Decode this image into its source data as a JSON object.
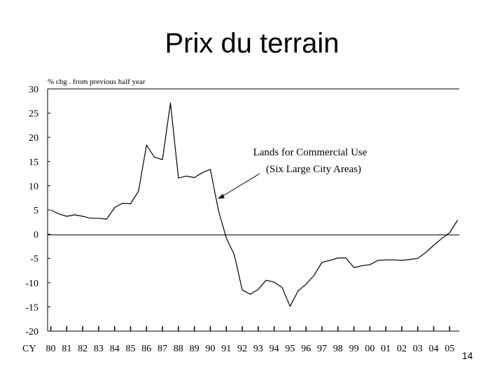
{
  "slide": {
    "title": "Prix du terrain",
    "page_number": "14"
  },
  "chart_data": {
    "type": "line",
    "title": "Prix du terrain",
    "ylabel": "% chg . from previous half year",
    "xlabel": "",
    "x_axis_prefix": "CY",
    "ylim": [
      -20,
      30
    ],
    "yticks": [
      30,
      25,
      20,
      15,
      10,
      5,
      0,
      -5,
      -10,
      -15,
      -20
    ],
    "ytick_labels": [
      "30",
      "25",
      "20",
      "15",
      "10",
      "5",
      "0",
      "-5",
      "-10",
      "-15",
      "-20"
    ],
    "categories": [
      "80",
      "81",
      "82",
      "83",
      "84",
      "85",
      "86",
      "87",
      "88",
      "89",
      "90",
      "91",
      "92",
      "93",
      "94",
      "95",
      "96",
      "97",
      "98",
      "99",
      "00",
      "01",
      "02",
      "03",
      "04",
      "05"
    ],
    "grid": false,
    "annotation": {
      "lines": [
        "Lands for Commercial Use",
        "(Six Large City Areas)"
      ]
    },
    "series": [
      {
        "name": "",
        "color": "#000000",
        "x": [
          1980.0,
          1980.5,
          1981.0,
          1981.5,
          1982.0,
          1982.5,
          1983.0,
          1983.5,
          1984.0,
          1984.5,
          1985.0,
          1985.5,
          1986.0,
          1986.5,
          1987.0,
          1987.5,
          1988.0,
          1988.5,
          1989.0,
          1989.5,
          1990.0,
          1990.5,
          1991.0,
          1991.5,
          1992.0,
          1992.5,
          1993.0,
          1993.5,
          1994.0,
          1994.5,
          1995.0,
          1995.5,
          1996.0,
          1996.5,
          1997.0,
          1997.5,
          1998.0,
          1998.5,
          1999.0,
          1999.5,
          2000.0,
          2000.5,
          2001.0,
          2001.5,
          2002.0,
          2002.5,
          2003.0,
          2003.5,
          2004.0,
          2004.5,
          2005.0,
          2005.5
        ],
        "y": [
          5.0,
          4.2,
          3.7,
          4.0,
          3.7,
          3.3,
          3.3,
          3.1,
          5.5,
          6.4,
          6.3,
          8.9,
          18.4,
          15.9,
          15.4,
          27.1,
          11.6,
          12.0,
          11.7,
          12.7,
          13.4,
          5.0,
          -0.8,
          -4.2,
          -11.5,
          -12.4,
          -11.4,
          -9.5,
          -9.9,
          -11.0,
          -14.9,
          -11.7,
          -10.3,
          -8.5,
          -5.8,
          -5.4,
          -4.9,
          -4.9,
          -6.9,
          -6.5,
          -6.3,
          -5.4,
          -5.3,
          -5.3,
          -5.4,
          -5.2,
          -5.0,
          -3.8,
          -2.3,
          -0.9,
          0.3,
          2.9
        ]
      }
    ]
  }
}
